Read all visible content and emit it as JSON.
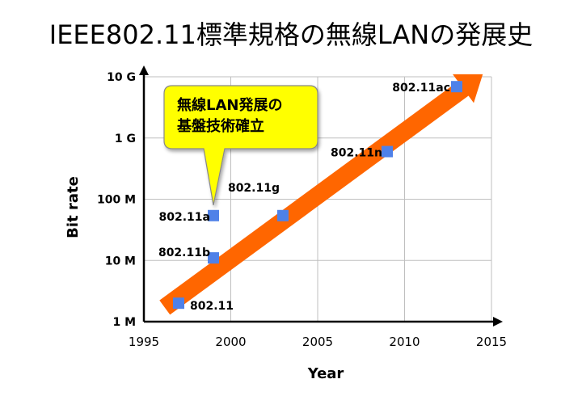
{
  "title": "IEEE802.11標準規格の無線LANの発展史",
  "chart_data": {
    "type": "scatter",
    "title": "IEEE802.11標準規格の無線LANの発展史",
    "xlabel": "Year",
    "ylabel": "Bit rate",
    "xlim": [
      1995,
      2015
    ],
    "ylim_log10": [
      6,
      10
    ],
    "y_scale": "log",
    "x_ticks": [
      "1995",
      "2000",
      "2005",
      "2010",
      "2015"
    ],
    "y_ticks": [
      "1 M",
      "10 M",
      "100 M",
      "1 G",
      "10 G"
    ],
    "grid": true,
    "points": [
      {
        "label": "802.11",
        "x": 1997,
        "y": 2000000
      },
      {
        "label": "802.11b",
        "x": 1999,
        "y": 11000000
      },
      {
        "label": "802.11a",
        "x": 1999,
        "y": 54000000
      },
      {
        "label": "802.11g",
        "x": 2003,
        "y": 54000000
      },
      {
        "label": "802.11n",
        "x": 2009,
        "y": 600000000
      },
      {
        "label": "802.11ac",
        "x": 2013,
        "y": 6900000000
      }
    ],
    "trend_arrow": {
      "color": "#ff6600",
      "from": {
        "x": 1996.2,
        "y": 1700000
      },
      "to": {
        "x": 2014.5,
        "y": 11000000000
      }
    },
    "annotation": {
      "lines": [
        "無線LAN発展の",
        "基盤技術確立"
      ],
      "fill": "#ffff00",
      "points_to": {
        "x": 1999,
        "y": 80000000
      }
    },
    "marker_color": "#4f81e8"
  }
}
